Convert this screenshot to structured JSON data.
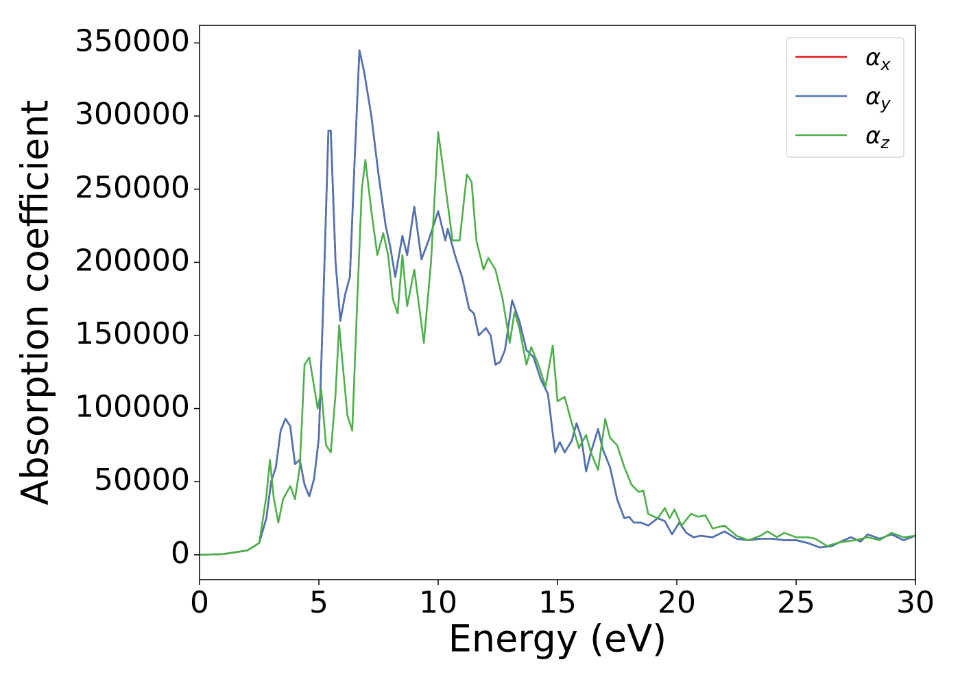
{
  "chart_data": {
    "type": "line",
    "xlabel": "Energy (eV)",
    "ylabel": "Absorption coefficient",
    "xlim": [
      0,
      30
    ],
    "ylim": [
      -17000,
      362000
    ],
    "xticks": [
      0,
      5,
      10,
      15,
      20,
      25,
      30
    ],
    "yticks": [
      0,
      50000,
      100000,
      150000,
      200000,
      250000,
      300000,
      350000
    ],
    "legend": "upper right",
    "grid": false,
    "series": [
      {
        "name": "αx",
        "color": "#e41a1c",
        "x": [
          0,
          1,
          2,
          2.5,
          2.8,
          3.0,
          3.2,
          3.4,
          3.6,
          3.8,
          4.0,
          4.2,
          4.4,
          4.6,
          4.8,
          5.0,
          5.2,
          5.4,
          5.5,
          5.7,
          5.9,
          6.1,
          6.3,
          6.5,
          6.7,
          6.9,
          7.2,
          7.5,
          7.8,
          8.0,
          8.2,
          8.5,
          8.7,
          9.0,
          9.3,
          9.6,
          10.0,
          10.3,
          10.4,
          10.7,
          11.0,
          11.3,
          11.5,
          11.7,
          12.0,
          12.2,
          12.4,
          12.6,
          12.8,
          13.1,
          13.4,
          13.7,
          14.0,
          14.3,
          14.6,
          14.9,
          15.1,
          15.3,
          15.6,
          15.8,
          16.0,
          16.2,
          16.4,
          16.7,
          16.9,
          17.2,
          17.5,
          17.8,
          18.0,
          18.2,
          18.5,
          18.8,
          19.2,
          19.5,
          19.8,
          20.1,
          20.4,
          20.7,
          21.0,
          21.5,
          22.0,
          22.5,
          23.0,
          23.5,
          24.0,
          24.5,
          25.0,
          25.5,
          26.0,
          26.5,
          27.0,
          27.3,
          27.7,
          28.0,
          28.5,
          29.0,
          29.5,
          30.0
        ],
        "values": [
          0,
          500,
          3000,
          8000,
          25000,
          50000,
          60000,
          85000,
          93000,
          88000,
          62000,
          65000,
          48000,
          40000,
          52000,
          80000,
          180000,
          290000,
          290000,
          200000,
          160000,
          178000,
          190000,
          270000,
          345000,
          330000,
          300000,
          260000,
          225000,
          210000,
          190000,
          218000,
          205000,
          238000,
          202000,
          215000,
          235000,
          215000,
          223000,
          205000,
          190000,
          168000,
          165000,
          150000,
          155000,
          150000,
          130000,
          132000,
          140000,
          174000,
          160000,
          140000,
          135000,
          120000,
          110000,
          70000,
          77000,
          70000,
          78000,
          90000,
          80000,
          57000,
          70000,
          86000,
          72000,
          60000,
          38000,
          25000,
          26000,
          22000,
          22000,
          20000,
          25000,
          23000,
          14000,
          22000,
          15000,
          12000,
          13000,
          12000,
          16000,
          11000,
          10000,
          11000,
          11000,
          10000,
          10000,
          8000,
          5000,
          6000,
          10000,
          12000,
          9000,
          14000,
          11000,
          14000,
          10000,
          13000
        ]
      },
      {
        "name": "αy",
        "color": "#4a74b4",
        "x": [
          0,
          1,
          2,
          2.5,
          2.8,
          3.0,
          3.2,
          3.4,
          3.6,
          3.8,
          4.0,
          4.2,
          4.4,
          4.6,
          4.8,
          5.0,
          5.2,
          5.4,
          5.5,
          5.7,
          5.9,
          6.1,
          6.3,
          6.5,
          6.7,
          6.9,
          7.2,
          7.5,
          7.8,
          8.0,
          8.2,
          8.5,
          8.7,
          9.0,
          9.3,
          9.6,
          10.0,
          10.3,
          10.4,
          10.7,
          11.0,
          11.3,
          11.5,
          11.7,
          12.0,
          12.2,
          12.4,
          12.6,
          12.8,
          13.1,
          13.4,
          13.7,
          14.0,
          14.3,
          14.6,
          14.9,
          15.1,
          15.3,
          15.6,
          15.8,
          16.0,
          16.2,
          16.4,
          16.7,
          16.9,
          17.2,
          17.5,
          17.8,
          18.0,
          18.2,
          18.5,
          18.8,
          19.2,
          19.5,
          19.8,
          20.1,
          20.4,
          20.7,
          21.0,
          21.5,
          22.0,
          22.5,
          23.0,
          23.5,
          24.0,
          24.5,
          25.0,
          25.5,
          26.0,
          26.5,
          27.0,
          27.3,
          27.7,
          28.0,
          28.5,
          29.0,
          29.5,
          30.0
        ],
        "values": [
          0,
          500,
          3000,
          8000,
          25000,
          50000,
          60000,
          85000,
          93000,
          88000,
          62000,
          65000,
          48000,
          40000,
          52000,
          80000,
          180000,
          290000,
          290000,
          200000,
          160000,
          178000,
          190000,
          270000,
          345000,
          330000,
          300000,
          260000,
          225000,
          210000,
          190000,
          218000,
          205000,
          238000,
          202000,
          215000,
          235000,
          215000,
          223000,
          205000,
          190000,
          168000,
          165000,
          150000,
          155000,
          150000,
          130000,
          132000,
          140000,
          174000,
          160000,
          140000,
          135000,
          120000,
          110000,
          70000,
          77000,
          70000,
          78000,
          90000,
          80000,
          57000,
          70000,
          86000,
          72000,
          60000,
          38000,
          25000,
          26000,
          22000,
          22000,
          20000,
          25000,
          23000,
          14000,
          22000,
          15000,
          12000,
          13000,
          12000,
          16000,
          11000,
          10000,
          11000,
          11000,
          10000,
          10000,
          8000,
          5000,
          6000,
          10000,
          12000,
          9000,
          14000,
          11000,
          14000,
          10000,
          13000
        ]
      },
      {
        "name": "αz",
        "color": "#4daf4a",
        "x": [
          0,
          1,
          2,
          2.5,
          2.8,
          2.95,
          3.1,
          3.3,
          3.5,
          3.8,
          4.0,
          4.2,
          4.4,
          4.6,
          4.8,
          4.95,
          5.1,
          5.3,
          5.5,
          5.7,
          5.85,
          6.0,
          6.2,
          6.4,
          6.6,
          6.8,
          6.95,
          7.2,
          7.45,
          7.7,
          7.9,
          8.1,
          8.3,
          8.5,
          8.7,
          9.0,
          9.2,
          9.4,
          9.7,
          10.0,
          10.2,
          10.4,
          10.6,
          10.9,
          11.2,
          11.4,
          11.6,
          11.9,
          12.1,
          12.4,
          12.7,
          13.0,
          13.2,
          13.4,
          13.7,
          13.9,
          14.2,
          14.5,
          14.8,
          15.0,
          15.3,
          15.6,
          15.9,
          16.2,
          16.4,
          16.7,
          17.0,
          17.2,
          17.5,
          17.8,
          18.1,
          18.4,
          18.6,
          18.8,
          19.2,
          19.5,
          19.7,
          19.9,
          20.2,
          20.6,
          20.9,
          21.2,
          21.5,
          22.0,
          22.5,
          23.0,
          23.5,
          23.8,
          24.2,
          24.5,
          25.0,
          25.5,
          25.8,
          26.3,
          26.7,
          27.0,
          27.5,
          28.0,
          28.5,
          29.0,
          29.5,
          30.0
        ],
        "values": [
          0,
          500,
          3000,
          8000,
          40000,
          65000,
          40000,
          22000,
          38000,
          47000,
          38000,
          60000,
          130000,
          135000,
          115000,
          100000,
          113000,
          75000,
          70000,
          110000,
          157000,
          130000,
          95000,
          85000,
          170000,
          250000,
          270000,
          235000,
          205000,
          220000,
          205000,
          175000,
          165000,
          205000,
          170000,
          195000,
          170000,
          145000,
          200000,
          289000,
          265000,
          240000,
          215000,
          215000,
          260000,
          255000,
          215000,
          195000,
          203000,
          195000,
          175000,
          145000,
          166000,
          155000,
          130000,
          142000,
          130000,
          115000,
          143000,
          105000,
          108000,
          90000,
          73000,
          82000,
          70000,
          58000,
          93000,
          80000,
          75000,
          60000,
          48000,
          43000,
          44000,
          28000,
          25000,
          32000,
          25000,
          31000,
          20000,
          28000,
          26000,
          27000,
          18000,
          20000,
          13000,
          10000,
          13000,
          16000,
          12000,
          15000,
          12000,
          12000,
          11000,
          6000,
          8000,
          9000,
          10000,
          12000,
          10000,
          15000,
          12000,
          13000
        ]
      }
    ]
  }
}
